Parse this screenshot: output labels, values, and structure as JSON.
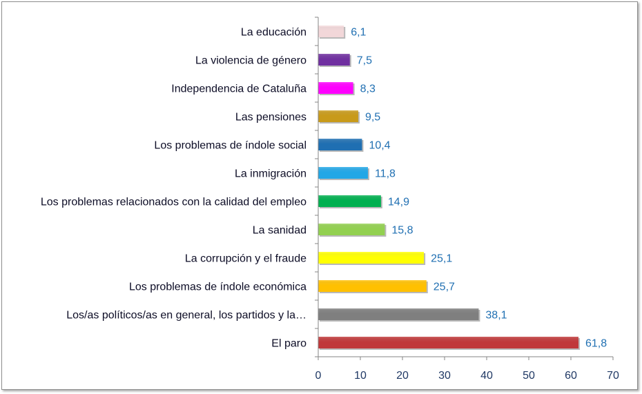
{
  "chart_data": {
    "type": "bar",
    "orientation": "horizontal",
    "categories": [
      "La educación",
      "La violencia de género",
      "Independencia de Cataluña",
      "Las pensiones",
      "Los problemas de índole social",
      "La inmigración",
      "Los problemas relacionados con la calidad del empleo",
      "La sanidad",
      "La corrupción y el fraude",
      "Los problemas de índole económica",
      "Los/as políticos/as en general, los partidos y la…",
      "El paro"
    ],
    "values": [
      6.1,
      7.5,
      8.3,
      9.5,
      10.4,
      11.8,
      14.9,
      15.8,
      25.1,
      25.7,
      38.1,
      61.8
    ],
    "value_labels": [
      "6,1",
      "7,5",
      "8,3",
      "9,5",
      "10,4",
      "11,8",
      "14,9",
      "15,8",
      "25,1",
      "25,7",
      "38,1",
      "61,8"
    ],
    "colors": [
      "#f2d7d9",
      "#7030a0",
      "#ff00ff",
      "#c89a1a",
      "#1f6fb2",
      "#22a7e6",
      "#00b050",
      "#92d050",
      "#ffff00",
      "#ffc000",
      "#7f7f7f",
      "#c0383a"
    ],
    "xlim": [
      0,
      70
    ],
    "xticks": [
      0,
      10,
      20,
      30,
      40,
      50,
      60,
      70
    ],
    "title": "",
    "xlabel": "",
    "ylabel": "",
    "grid": false,
    "legend": "none"
  }
}
